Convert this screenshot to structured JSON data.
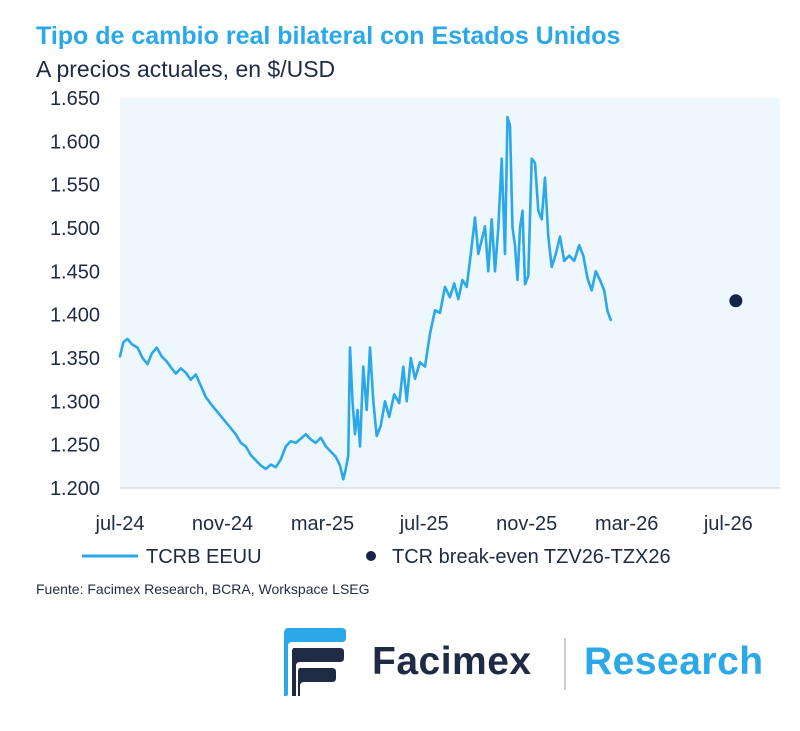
{
  "chart_data": {
    "type": "line",
    "title": "Tipo de cambio real bilateral con Estados Unidos",
    "subtitle": "A precios actuales, en $/USD",
    "y_range": [
      1200,
      1650
    ],
    "y_ticks": [
      1200,
      1250,
      1300,
      1350,
      1400,
      1450,
      1500,
      1550,
      1600,
      1650
    ],
    "y_tick_labels": [
      "1.200",
      "1.250",
      "1.300",
      "1.350",
      "1.400",
      "1.450",
      "1.500",
      "1.550",
      "1.600",
      "1.650"
    ],
    "x_range": [
      "2024-07-01",
      "2026-09-01"
    ],
    "x_tick_dates": [
      "2024-07",
      "2024-11",
      "2025-03",
      "2025-07",
      "2025-11",
      "2026-03",
      "2026-07"
    ],
    "x_tick_labels": [
      "jul-24",
      "nov-24",
      "mar-25",
      "jul-25",
      "nov-25",
      "mar-26",
      "jul-26"
    ],
    "series": [
      {
        "name": "TCRB EEUU",
        "color": "#2aa8e8",
        "points": [
          [
            "2024-07-01",
            1352
          ],
          [
            "2024-07-05",
            1368
          ],
          [
            "2024-07-10",
            1372
          ],
          [
            "2024-07-15",
            1366
          ],
          [
            "2024-07-22",
            1362
          ],
          [
            "2024-07-28",
            1350
          ],
          [
            "2024-08-03",
            1343
          ],
          [
            "2024-08-08",
            1355
          ],
          [
            "2024-08-14",
            1362
          ],
          [
            "2024-08-20",
            1352
          ],
          [
            "2024-08-26",
            1346
          ],
          [
            "2024-09-01",
            1338
          ],
          [
            "2024-09-06",
            1332
          ],
          [
            "2024-09-12",
            1338
          ],
          [
            "2024-09-18",
            1333
          ],
          [
            "2024-09-24",
            1325
          ],
          [
            "2024-09-30",
            1331
          ],
          [
            "2024-10-06",
            1318
          ],
          [
            "2024-10-12",
            1305
          ],
          [
            "2024-10-18",
            1297
          ],
          [
            "2024-10-24",
            1290
          ],
          [
            "2024-10-30",
            1283
          ],
          [
            "2024-11-05",
            1276
          ],
          [
            "2024-11-11",
            1269
          ],
          [
            "2024-11-17",
            1262
          ],
          [
            "2024-11-23",
            1252
          ],
          [
            "2024-11-29",
            1248
          ],
          [
            "2024-12-05",
            1238
          ],
          [
            "2024-12-11",
            1232
          ],
          [
            "2024-12-17",
            1226
          ],
          [
            "2024-12-23",
            1222
          ],
          [
            "2024-12-29",
            1227
          ],
          [
            "2025-01-04",
            1224
          ],
          [
            "2025-01-10",
            1233
          ],
          [
            "2025-01-16",
            1248
          ],
          [
            "2025-01-22",
            1254
          ],
          [
            "2025-01-28",
            1252
          ],
          [
            "2025-02-03",
            1257
          ],
          [
            "2025-02-09",
            1262
          ],
          [
            "2025-02-15",
            1256
          ],
          [
            "2025-02-21",
            1252
          ],
          [
            "2025-02-27",
            1258
          ],
          [
            "2025-03-05",
            1248
          ],
          [
            "2025-03-11",
            1242
          ],
          [
            "2025-03-17",
            1236
          ],
          [
            "2025-03-22",
            1226
          ],
          [
            "2025-03-26",
            1210
          ],
          [
            "2025-03-29",
            1222
          ],
          [
            "2025-04-01",
            1238
          ],
          [
            "2025-04-03",
            1362
          ],
          [
            "2025-04-06",
            1300
          ],
          [
            "2025-04-09",
            1262
          ],
          [
            "2025-04-12",
            1290
          ],
          [
            "2025-04-15",
            1248
          ],
          [
            "2025-04-19",
            1340
          ],
          [
            "2025-04-23",
            1290
          ],
          [
            "2025-04-27",
            1362
          ],
          [
            "2025-05-01",
            1300
          ],
          [
            "2025-05-05",
            1260
          ],
          [
            "2025-05-10",
            1272
          ],
          [
            "2025-05-15",
            1300
          ],
          [
            "2025-05-20",
            1282
          ],
          [
            "2025-05-26",
            1308
          ],
          [
            "2025-06-01",
            1298
          ],
          [
            "2025-06-06",
            1340
          ],
          [
            "2025-06-10",
            1300
          ],
          [
            "2025-06-15",
            1350
          ],
          [
            "2025-06-20",
            1326
          ],
          [
            "2025-06-26",
            1345
          ],
          [
            "2025-07-02",
            1340
          ],
          [
            "2025-07-08",
            1378
          ],
          [
            "2025-07-14",
            1405
          ],
          [
            "2025-07-20",
            1402
          ],
          [
            "2025-07-26",
            1432
          ],
          [
            "2025-08-01",
            1420
          ],
          [
            "2025-08-06",
            1436
          ],
          [
            "2025-08-11",
            1418
          ],
          [
            "2025-08-16",
            1440
          ],
          [
            "2025-08-21",
            1432
          ],
          [
            "2025-08-26",
            1470
          ],
          [
            "2025-08-31",
            1512
          ],
          [
            "2025-09-04",
            1470
          ],
          [
            "2025-09-08",
            1486
          ],
          [
            "2025-09-12",
            1502
          ],
          [
            "2025-09-16",
            1450
          ],
          [
            "2025-09-20",
            1510
          ],
          [
            "2025-09-24",
            1450
          ],
          [
            "2025-09-28",
            1500
          ],
          [
            "2025-10-02",
            1580
          ],
          [
            "2025-10-06",
            1470
          ],
          [
            "2025-10-09",
            1628
          ],
          [
            "2025-10-12",
            1618
          ],
          [
            "2025-10-15",
            1500
          ],
          [
            "2025-10-18",
            1480
          ],
          [
            "2025-10-21",
            1440
          ],
          [
            "2025-10-24",
            1500
          ],
          [
            "2025-10-27",
            1520
          ],
          [
            "2025-10-30",
            1435
          ],
          [
            "2025-11-03",
            1445
          ],
          [
            "2025-11-07",
            1580
          ],
          [
            "2025-11-11",
            1575
          ],
          [
            "2025-11-15",
            1520
          ],
          [
            "2025-11-19",
            1510
          ],
          [
            "2025-11-23",
            1558
          ],
          [
            "2025-11-27",
            1490
          ],
          [
            "2025-12-01",
            1455
          ],
          [
            "2025-12-06",
            1470
          ],
          [
            "2025-12-11",
            1490
          ],
          [
            "2025-12-16",
            1462
          ],
          [
            "2025-12-22",
            1468
          ],
          [
            "2025-12-28",
            1462
          ],
          [
            "2026-01-03",
            1480
          ],
          [
            "2026-01-08",
            1468
          ],
          [
            "2026-01-13",
            1442
          ],
          [
            "2026-01-18",
            1428
          ],
          [
            "2026-01-23",
            1450
          ],
          [
            "2026-01-28",
            1440
          ],
          [
            "2026-02-02",
            1428
          ],
          [
            "2026-02-06",
            1404
          ],
          [
            "2026-02-10",
            1394
          ]
        ]
      },
      {
        "name": "TCR break-even TZV26-TZX26",
        "color": "#15244a",
        "marker": "dot",
        "points": [
          [
            "2026-07-10",
            1416
          ]
        ]
      }
    ],
    "legend": [
      {
        "label": "TCRB EEUU",
        "style": "line",
        "color": "#2aa8e8"
      },
      {
        "label": "TCR break-even TZV26-TZX26",
        "style": "dot",
        "color": "#15244a"
      }
    ],
    "plot_background": "#eef7fd"
  },
  "source": "Fuente: Facimex Research, BCRA, Workspace LSEG",
  "logo": {
    "name": "Facimex",
    "division": "Research"
  }
}
